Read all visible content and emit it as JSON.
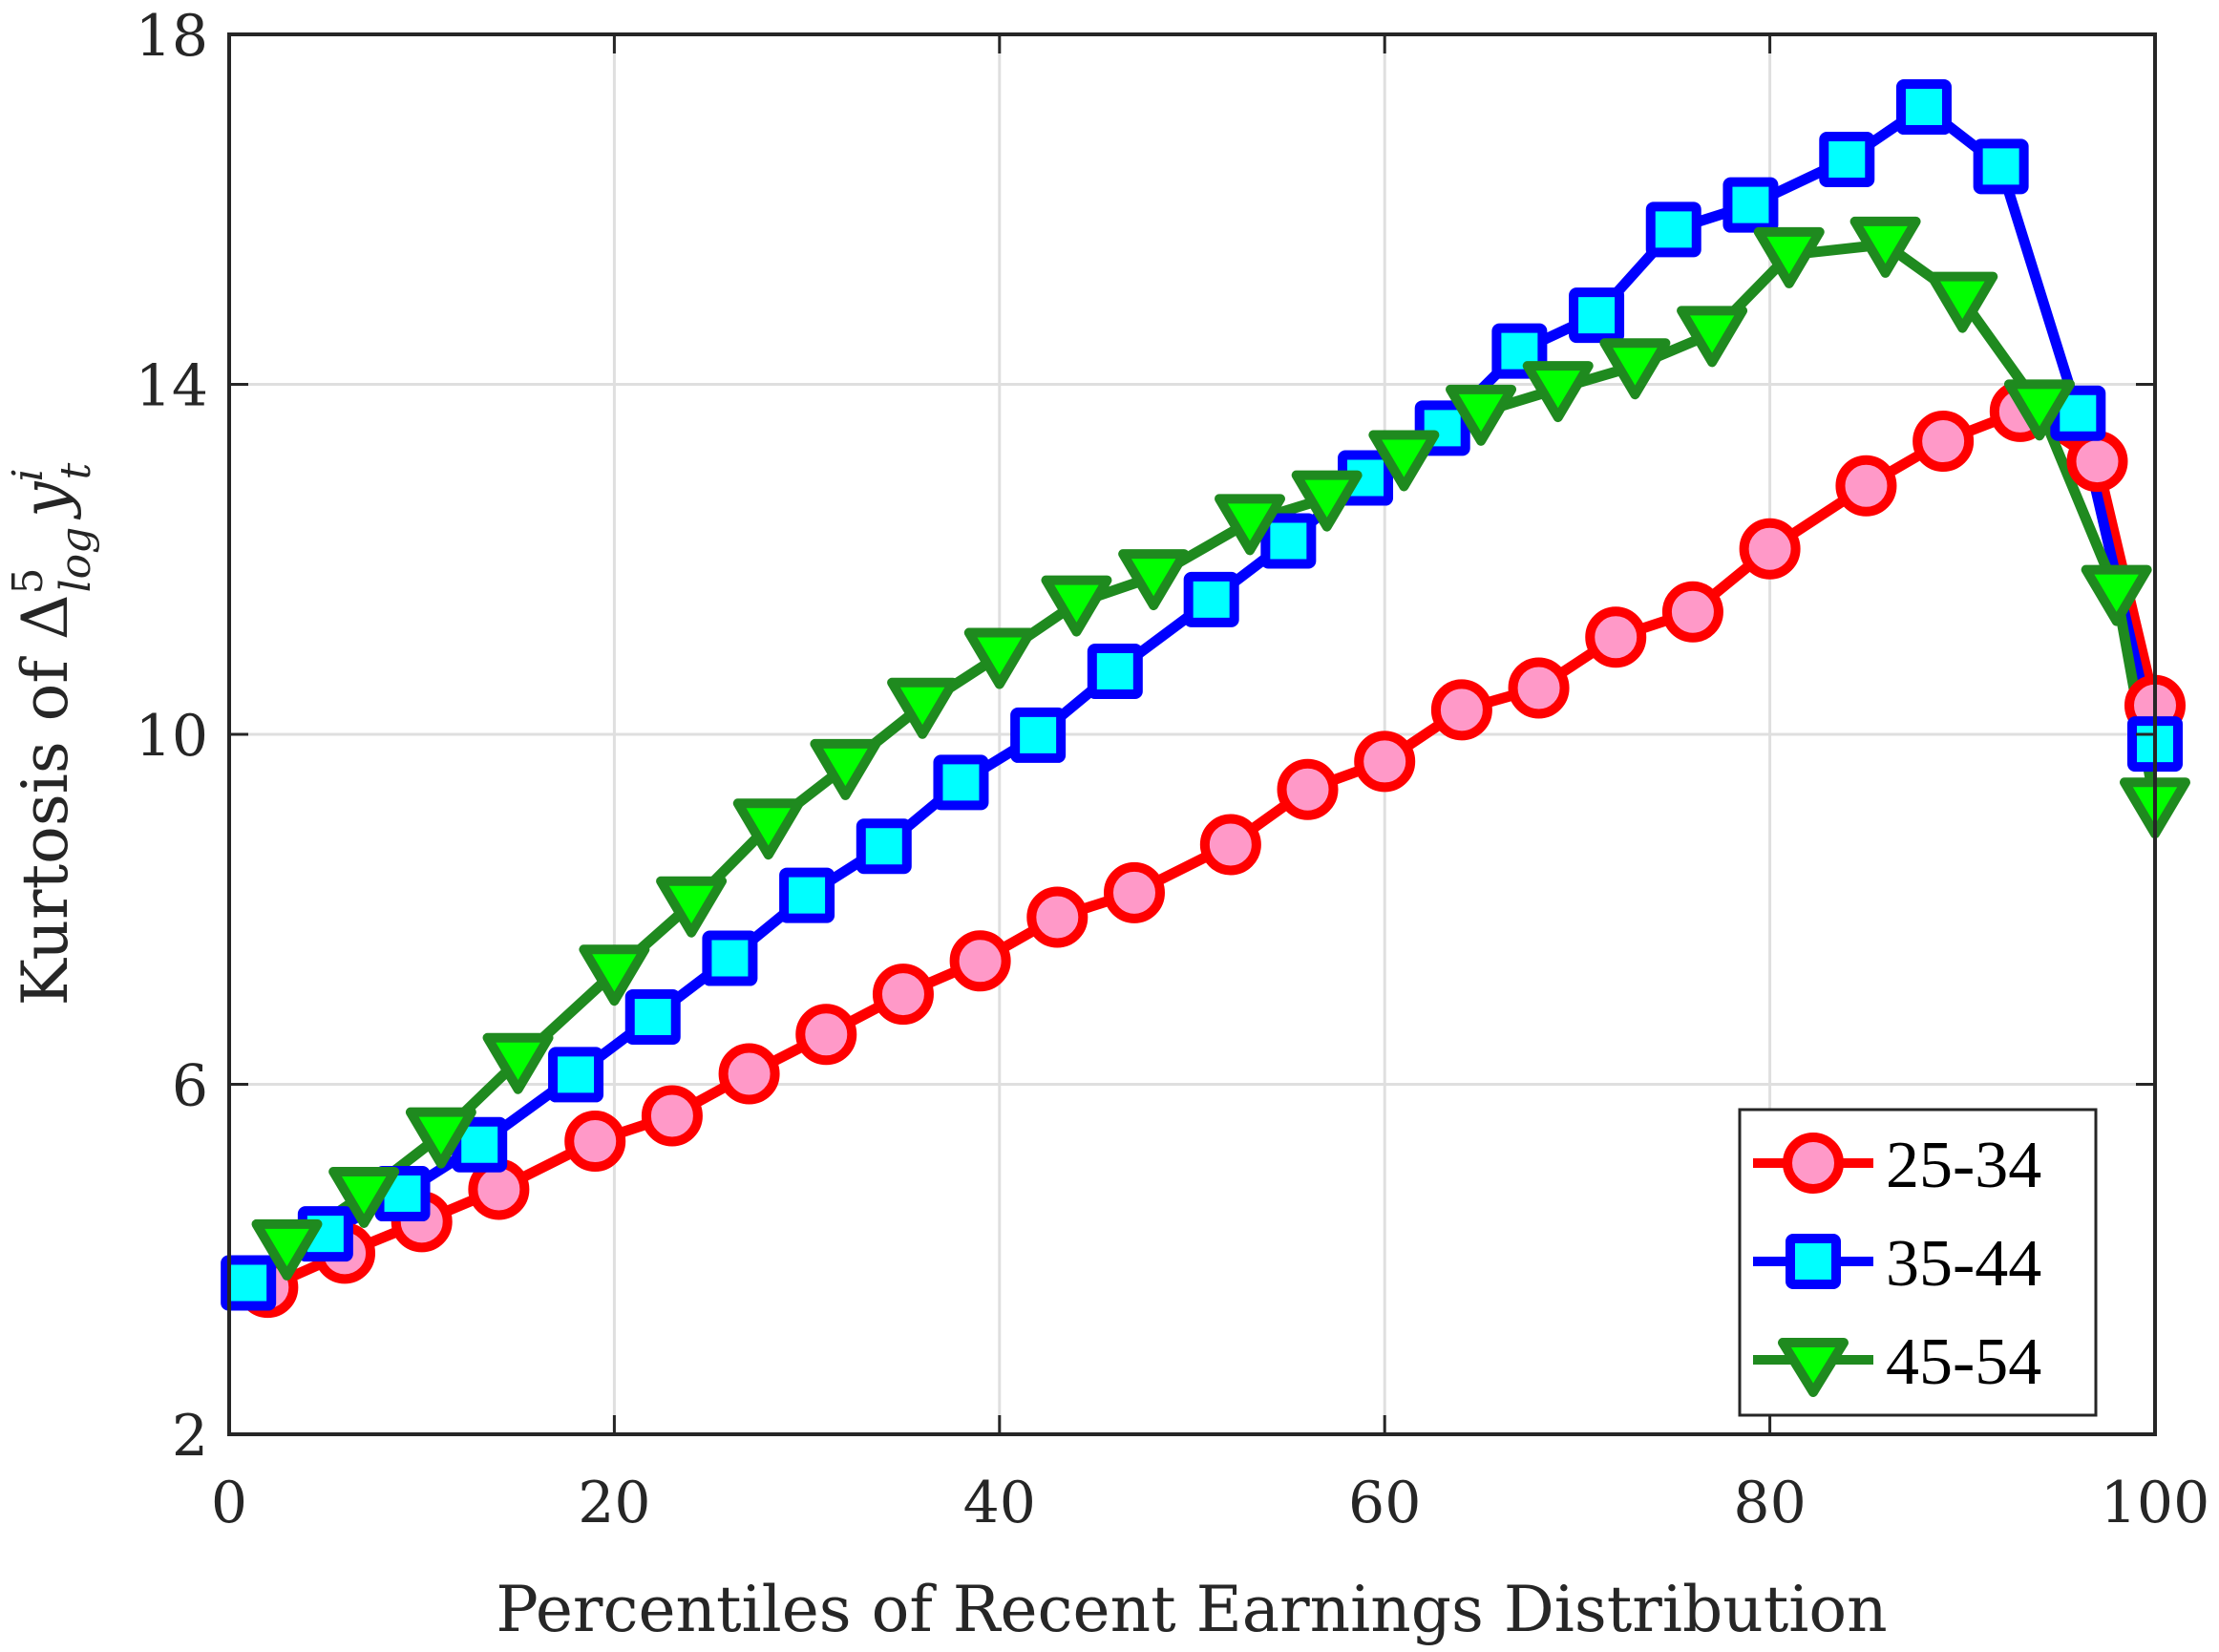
{
  "chart_data": {
    "type": "line",
    "title": "",
    "xlabel": "Percentiles of Recent Earnings Distribution",
    "ylabel": {
      "prefix": "Kurtosis of ",
      "delta": "Δ",
      "sup": "5",
      "sub": "log",
      "var": "y",
      "var_sup": "i",
      "var_sub": "t",
      "plain": "Kurtosis of Δ^5_log y^i_t"
    },
    "xlim": [
      0,
      100
    ],
    "ylim": [
      2,
      18
    ],
    "xticks": [
      0,
      20,
      40,
      60,
      80,
      100
    ],
    "yticks": [
      2,
      6,
      10,
      14,
      18
    ],
    "grid": true,
    "legend_position": "lower right",
    "series": [
      {
        "name": "25-34",
        "marker": "circle",
        "line_color": "#ff0000",
        "marker_fill": "#ff99c8",
        "x": [
          2,
          6,
          10,
          14,
          19,
          23,
          27,
          31,
          35,
          39,
          43,
          47,
          52,
          56,
          60,
          64,
          68,
          72,
          76,
          80,
          85,
          89,
          93,
          97,
          100
        ],
        "values": [
          3.68,
          4.07,
          4.43,
          4.8,
          5.35,
          5.64,
          6.12,
          6.57,
          7.03,
          7.41,
          7.91,
          8.19,
          8.74,
          9.37,
          9.69,
          10.28,
          10.53,
          11.11,
          11.4,
          12.12,
          12.84,
          13.35,
          13.69,
          13.12,
          10.33
        ]
      },
      {
        "name": "35-44",
        "marker": "square",
        "line_color": "#0000ff",
        "marker_fill": "#00ffff",
        "x": [
          1,
          5,
          9,
          13,
          18,
          22,
          26,
          30,
          34,
          38,
          42,
          46,
          51,
          55,
          59,
          63,
          67,
          71,
          75,
          79,
          84,
          88,
          92,
          96,
          100
        ],
        "values": [
          3.73,
          4.29,
          4.75,
          5.31,
          6.11,
          6.77,
          7.44,
          8.16,
          8.72,
          9.45,
          9.99,
          10.72,
          11.54,
          12.21,
          12.93,
          13.5,
          14.38,
          14.79,
          15.77,
          16.05,
          16.57,
          17.17,
          16.49,
          13.67,
          9.89
        ]
      },
      {
        "name": "45-54",
        "marker": "triangle-down",
        "line_color": "#1f8a1f",
        "marker_fill": "#00ff00",
        "x": [
          3,
          7,
          11,
          15,
          20,
          24,
          28,
          32,
          36,
          40,
          44,
          48,
          53,
          57,
          61,
          65,
          69,
          73,
          77,
          81,
          86,
          90,
          94,
          98,
          100
        ],
        "values": [
          4.14,
          4.74,
          5.42,
          6.27,
          7.28,
          8.06,
          8.95,
          9.63,
          10.33,
          10.9,
          11.5,
          11.8,
          12.43,
          12.7,
          13.16,
          13.68,
          13.95,
          14.21,
          14.58,
          15.48,
          15.6,
          14.97,
          13.74,
          11.62,
          9.19
        ]
      }
    ]
  },
  "legend": {
    "items": [
      {
        "label": "25-34"
      },
      {
        "label": "35-44"
      },
      {
        "label": "45-54"
      }
    ]
  },
  "colors": {
    "axis": "#262626",
    "grid": "#dfdfdf",
    "background": "#ffffff"
  }
}
